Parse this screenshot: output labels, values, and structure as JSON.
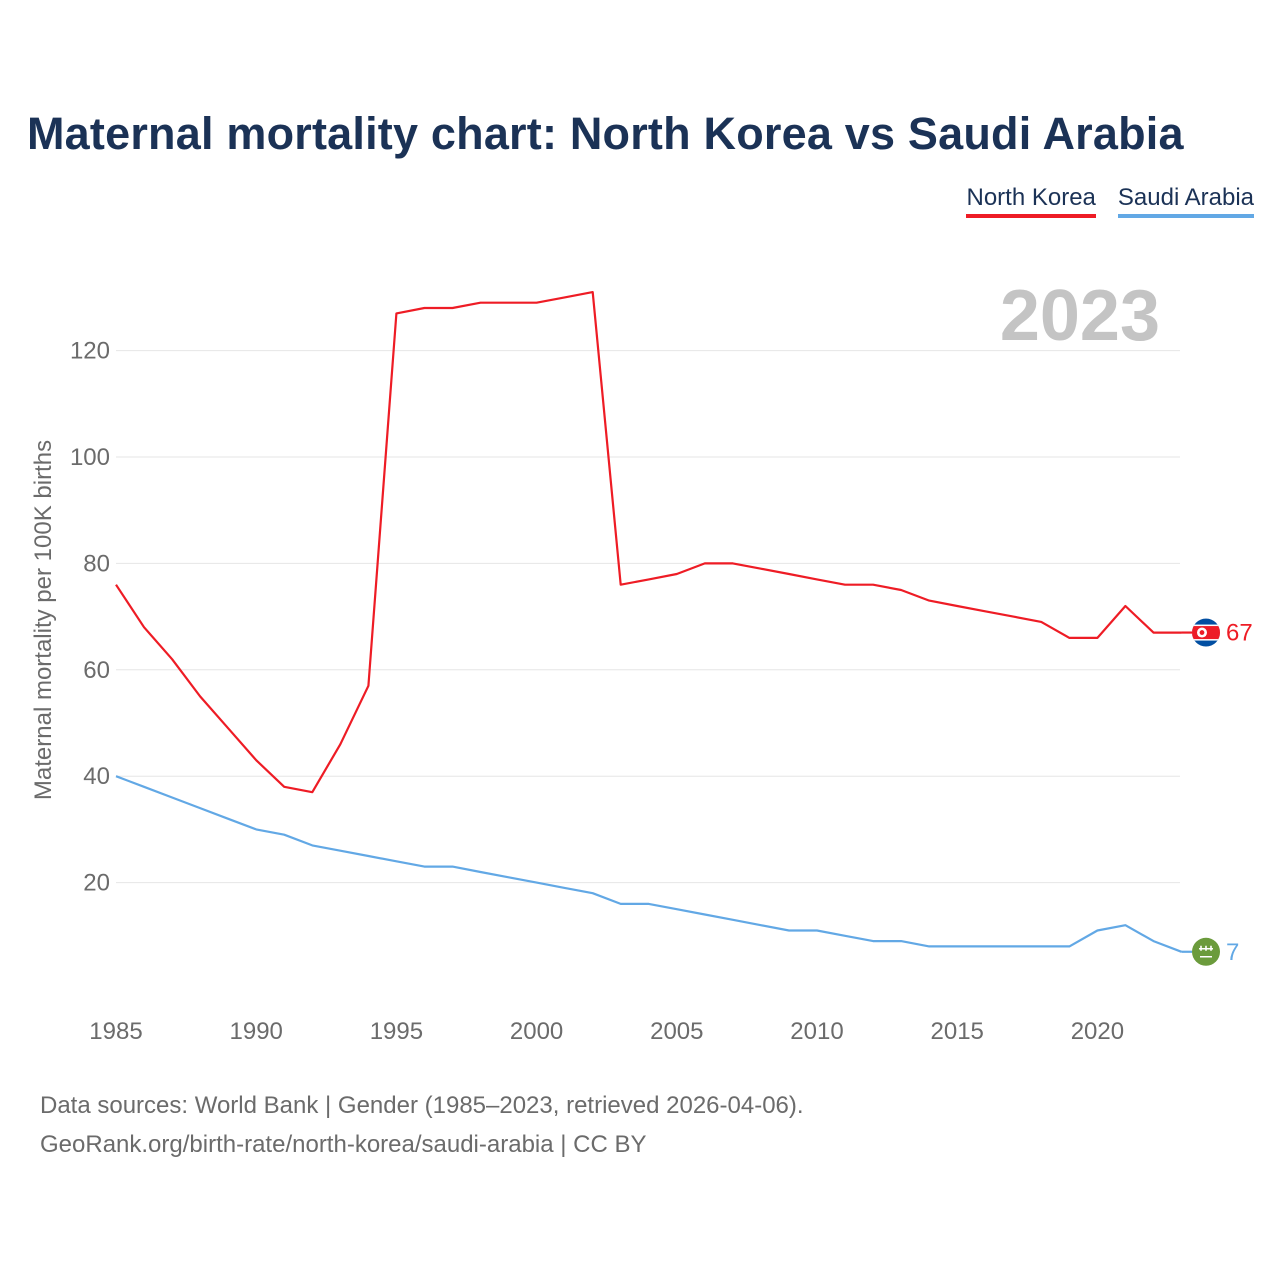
{
  "title": "Maternal mortality chart: North Korea vs Saudi Arabia",
  "legend": [
    {
      "label": "North Korea",
      "color": "#ee1c25"
    },
    {
      "label": "Saudi Arabia",
      "color": "#62a8e5"
    }
  ],
  "source": {
    "line1": "Data sources: World Bank | Gender (1985–2023, retrieved 2026-04-06).",
    "line2": "GeoRank.org/birth-rate/north-korea/saudi-arabia | CC BY"
  },
  "chart_data": {
    "type": "line",
    "year_label": "2023",
    "ylabel": "Maternal mortality per 100K births",
    "xlabel": "",
    "xlim": [
      1985,
      2023
    ],
    "ylim": [
      0,
      130
    ],
    "x_ticks": [
      1985,
      1990,
      1995,
      2000,
      2005,
      2010,
      2015,
      2020
    ],
    "y_ticks": [
      20,
      40,
      60,
      80,
      100,
      120
    ],
    "x": [
      1985,
      1986,
      1987,
      1988,
      1989,
      1990,
      1991,
      1992,
      1993,
      1994,
      1995,
      1996,
      1997,
      1998,
      1999,
      2000,
      2001,
      2002,
      2003,
      2004,
      2005,
      2006,
      2007,
      2008,
      2009,
      2010,
      2011,
      2012,
      2013,
      2014,
      2015,
      2016,
      2017,
      2018,
      2019,
      2020,
      2021,
      2022,
      2023
    ],
    "series": [
      {
        "name": "North Korea",
        "color": "#ee1c25",
        "flag": "north-korea-flag-icon",
        "end_label": "67",
        "values": [
          76,
          68,
          62,
          55,
          49,
          43,
          38,
          37,
          46,
          57,
          127,
          128,
          128,
          129,
          129,
          129,
          130,
          131,
          76,
          77,
          78,
          80,
          80,
          79,
          78,
          77,
          76,
          76,
          75,
          73,
          72,
          71,
          70,
          69,
          66,
          66,
          72,
          67,
          67
        ]
      },
      {
        "name": "Saudi Arabia",
        "color": "#62a8e5",
        "flag": "saudi-arabia-flag-icon",
        "end_label": "7",
        "values": [
          40,
          38,
          36,
          34,
          32,
          30,
          29,
          27,
          26,
          25,
          24,
          23,
          23,
          22,
          21,
          20,
          19,
          18,
          16,
          16,
          15,
          14,
          13,
          12,
          11,
          11,
          10,
          9,
          9,
          8,
          8,
          8,
          8,
          8,
          8,
          11,
          12,
          9,
          7
        ]
      }
    ]
  }
}
